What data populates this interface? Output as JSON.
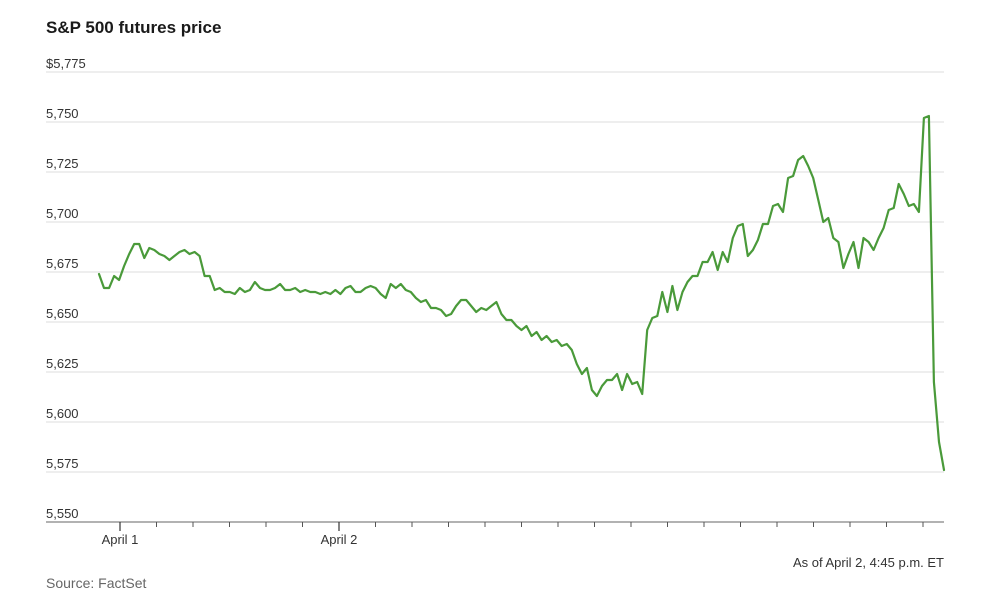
{
  "chart_data": {
    "type": "line",
    "title": "S&P 500 futures price",
    "xlabel": "",
    "ylabel": "",
    "ylim": [
      5550,
      5775
    ],
    "y_ticks": [
      {
        "value": 5775,
        "label": "$5,775"
      },
      {
        "value": 5750,
        "label": "5,750"
      },
      {
        "value": 5725,
        "label": "5,725"
      },
      {
        "value": 5700,
        "label": "5,700"
      },
      {
        "value": 5675,
        "label": "5,675"
      },
      {
        "value": 5650,
        "label": "5,650"
      },
      {
        "value": 5625,
        "label": "5,625"
      },
      {
        "value": 5600,
        "label": "5,600"
      },
      {
        "value": 5575,
        "label": "5,575"
      },
      {
        "value": 5550,
        "label": "5,550"
      }
    ],
    "x_tick_labels": [
      "April 1",
      "April 2"
    ],
    "grid": true,
    "line_color": "#4a9a3a",
    "series": [
      {
        "values": [
          5674,
          5667,
          5667,
          5673,
          5671,
          5678,
          5684,
          5689,
          5689,
          5682,
          5687,
          5686,
          5684,
          5683,
          5681,
          5683,
          5685,
          5686,
          5684,
          5685,
          5683,
          5673,
          5673,
          5666,
          5667,
          5665,
          5665,
          5664,
          5667,
          5665,
          5666,
          5670,
          5667,
          5666,
          5666,
          5667,
          5669,
          5666,
          5666,
          5667,
          5665,
          5666,
          5665,
          5665,
          5664,
          5665,
          5664,
          5666,
          5664,
          5667,
          5668,
          5665,
          5665,
          5667,
          5668,
          5667,
          5664,
          5662,
          5669,
          5667,
          5669,
          5666,
          5665,
          5662,
          5660,
          5661,
          5657,
          5657,
          5656,
          5653,
          5654,
          5658,
          5661,
          5661,
          5658,
          5655,
          5657,
          5656,
          5658,
          5660,
          5654,
          5651,
          5651,
          5648,
          5646,
          5648,
          5643,
          5645,
          5641,
          5643,
          5640,
          5641,
          5638,
          5639,
          5636,
          5629,
          5624,
          5627,
          5616,
          5613,
          5618,
          5621,
          5621,
          5624,
          5616,
          5624,
          5619,
          5620,
          5614,
          5646,
          5652,
          5653,
          5665,
          5655,
          5668,
          5656,
          5665,
          5670,
          5673,
          5673,
          5680,
          5680,
          5685,
          5676,
          5685,
          5680,
          5692,
          5698,
          5699,
          5683,
          5686,
          5691,
          5699,
          5699,
          5708,
          5709,
          5705,
          5722,
          5723,
          5731,
          5733,
          5728,
          5722,
          5711,
          5700,
          5702,
          5692,
          5690,
          5677,
          5684,
          5690,
          5677,
          5692,
          5690,
          5686,
          5692,
          5697,
          5706,
          5707,
          5719,
          5714,
          5708,
          5709,
          5705,
          5752,
          5753,
          5620,
          5590,
          5576
        ]
      }
    ]
  },
  "annotations": {
    "as_of": "As of April 2, 4:45 p.m. ET",
    "source": "Source: FactSet"
  }
}
